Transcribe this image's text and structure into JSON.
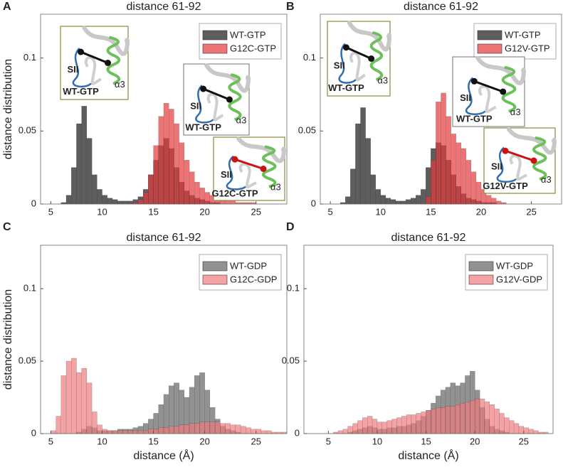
{
  "chart_data": [
    {
      "type": "histogram",
      "panel": "A",
      "title": "distance 61-92",
      "ylabel": "distance distribution",
      "xlim": [
        4,
        28
      ],
      "ylim": [
        0,
        0.13
      ],
      "xticks": [
        5,
        10,
        15,
        20,
        25
      ],
      "yticks": [
        0,
        0.05,
        0.1
      ],
      "legend": "upper right",
      "bins": [
        4.5,
        5,
        5.5,
        6,
        6.5,
        7,
        7.5,
        8,
        8.5,
        9,
        9.5,
        10,
        10.5,
        11,
        11.5,
        12,
        12.5,
        13,
        13.5,
        14,
        14.5,
        15,
        15.5,
        16,
        16.5,
        17,
        17.5,
        18,
        18.5,
        19,
        19.5,
        20,
        20.5,
        21,
        21.5,
        22,
        22.5,
        23,
        23.5,
        24,
        24.5,
        25,
        25.5,
        26,
        26.5,
        27,
        27.5,
        28
      ],
      "series": [
        {
          "name": "WT-GTP",
          "color": "#555555",
          "alpha": 0.95,
          "values": [
            0,
            0,
            0,
            0.001,
            0.006,
            0.025,
            0.055,
            0.067,
            0.045,
            0.02,
            0.01,
            0.006,
            0.004,
            0.003,
            0.002,
            0.002,
            0.002,
            0.003,
            0.005,
            0.01,
            0.02,
            0.03,
            0.04,
            0.045,
            0.038,
            0.025,
            0.015,
            0.009,
            0.006,
            0.004,
            0.003,
            0.002,
            0.001,
            0.001,
            0,
            0,
            0,
            0,
            0,
            0,
            0,
            0,
            0,
            0,
            0,
            0,
            0
          ]
        },
        {
          "name": "G12C-GTP",
          "color": "#e8393c",
          "alpha": 0.7,
          "values": [
            0,
            0,
            0,
            0,
            0,
            0,
            0,
            0,
            0,
            0,
            0,
            0,
            0,
            0,
            0,
            0,
            0,
            0.001,
            0.003,
            0.008,
            0.02,
            0.04,
            0.06,
            0.069,
            0.065,
            0.055,
            0.042,
            0.03,
            0.022,
            0.015,
            0.011,
            0.008,
            0.006,
            0.004,
            0.003,
            0.002,
            0.002,
            0.001,
            0.001,
            0.001,
            0.001,
            0,
            0,
            0,
            0,
            0,
            0
          ]
        }
      ],
      "insets": [
        {
          "sii": "SII",
          "helix": "α3",
          "name": "WT-GTP",
          "color": "#111111"
        },
        {
          "sii": "SII",
          "helix": "α3",
          "name": "WT-GTP",
          "color": "#111111"
        },
        {
          "sii": "SII",
          "helix": "α3",
          "name": "G12C-GTP",
          "color": "#cc1111"
        }
      ]
    },
    {
      "type": "histogram",
      "panel": "B",
      "title": "distance 61-92",
      "xlim": [
        4,
        28
      ],
      "ylim": [
        0,
        0.13
      ],
      "xticks": [
        5,
        10,
        15,
        20,
        25
      ],
      "yticks": [
        0,
        0.05,
        0.1
      ],
      "legend": "upper right",
      "bins": [
        4.5,
        5,
        5.5,
        6,
        6.5,
        7,
        7.5,
        8,
        8.5,
        9,
        9.5,
        10,
        10.5,
        11,
        11.5,
        12,
        12.5,
        13,
        13.5,
        14,
        14.5,
        15,
        15.5,
        16,
        16.5,
        17,
        17.5,
        18,
        18.5,
        19,
        19.5,
        20,
        20.5,
        21,
        21.5,
        22,
        22.5,
        23,
        23.5,
        24,
        24.5,
        25,
        25.5,
        26,
        26.5,
        27,
        27.5,
        28
      ],
      "series": [
        {
          "name": "WT-GTP",
          "color": "#555555",
          "alpha": 0.95,
          "values": [
            0,
            0,
            0,
            0.001,
            0.005,
            0.024,
            0.055,
            0.066,
            0.045,
            0.02,
            0.01,
            0.006,
            0.004,
            0.003,
            0.002,
            0.002,
            0.003,
            0.004,
            0.006,
            0.01,
            0.025,
            0.038,
            0.042,
            0.04,
            0.03,
            0.02,
            0.012,
            0.007,
            0.004,
            0.003,
            0.002,
            0.001,
            0.001,
            0.001,
            0,
            0,
            0,
            0,
            0,
            0,
            0,
            0,
            0,
            0,
            0,
            0,
            0
          ]
        },
        {
          "name": "G12V-GTP",
          "color": "#e8393c",
          "alpha": 0.7,
          "values": [
            0,
            0,
            0,
            0,
            0,
            0,
            0,
            0,
            0,
            0,
            0,
            0,
            0,
            0,
            0,
            0,
            0,
            0,
            0,
            0,
            0.005,
            0.03,
            0.07,
            0.076,
            0.06,
            0.048,
            0.042,
            0.038,
            0.03,
            0.022,
            0.015,
            0.01,
            0.006,
            0.004,
            0.002,
            0.001,
            0,
            0,
            0,
            0,
            0,
            0,
            0,
            0,
            0,
            0,
            0
          ]
        }
      ],
      "insets": [
        {
          "sii": "SII",
          "helix": "α3",
          "name": "WT-GTP",
          "color": "#111111"
        },
        {
          "sii": "SII",
          "helix": "α3",
          "name": "WT-GTP",
          "color": "#111111"
        },
        {
          "sii": "SII",
          "helix": "α3",
          "name": "G12V-GTP",
          "color": "#cc1111"
        }
      ]
    },
    {
      "type": "histogram",
      "panel": "C",
      "title": "distance 61-92",
      "xlabel": "distance (Å)",
      "ylabel": "distance distribution",
      "xlim": [
        4,
        28
      ],
      "ylim": [
        0,
        0.13
      ],
      "xticks": [
        5,
        10,
        15,
        20,
        25
      ],
      "yticks": [
        0,
        0.05,
        0.1
      ],
      "legend": "upper right",
      "bins": [
        4.5,
        5,
        5.5,
        6,
        6.5,
        7,
        7.5,
        8,
        8.5,
        9,
        9.5,
        10,
        10.5,
        11,
        11.5,
        12,
        12.5,
        13,
        13.5,
        14,
        14.5,
        15,
        15.5,
        16,
        16.5,
        17,
        17.5,
        18,
        18.5,
        19,
        19.5,
        20,
        20.5,
        21,
        21.5,
        22,
        22.5,
        23,
        23.5,
        24,
        24.5,
        25,
        25.5,
        26,
        26.5,
        27,
        27.5,
        28
      ],
      "series": [
        {
          "name": "WT-GDP",
          "color": "#777777",
          "alpha": 0.8,
          "values": [
            0,
            0,
            0,
            0,
            0,
            0,
            0.001,
            0.003,
            0.005,
            0.004,
            0.002,
            0.002,
            0.002,
            0.002,
            0.003,
            0.003,
            0.003,
            0.004,
            0.005,
            0.007,
            0.01,
            0.014,
            0.02,
            0.027,
            0.033,
            0.035,
            0.03,
            0.025,
            0.032,
            0.04,
            0.042,
            0.03,
            0.018,
            0.01,
            0.005,
            0.003,
            0.002,
            0.001,
            0,
            0,
            0,
            0,
            0,
            0,
            0,
            0,
            0
          ]
        },
        {
          "name": "G12C-GDP",
          "color": "#f07b7d",
          "alpha": 0.7,
          "values": [
            0,
            0.002,
            0.012,
            0.04,
            0.05,
            0.052,
            0.042,
            0.045,
            0.035,
            0.015,
            0.006,
            0.003,
            0.002,
            0.002,
            0.002,
            0.002,
            0.002,
            0.002,
            0.002,
            0.002,
            0.003,
            0.003,
            0.004,
            0.004,
            0.005,
            0.005,
            0.006,
            0.006,
            0.007,
            0.007,
            0.008,
            0.008,
            0.008,
            0.008,
            0.007,
            0.007,
            0.006,
            0.006,
            0.005,
            0.004,
            0.003,
            0.003,
            0.002,
            0.002,
            0.001,
            0.001,
            0.001
          ]
        }
      ]
    },
    {
      "type": "histogram",
      "panel": "D",
      "title": "distance 61-92",
      "xlabel": "distance (Å)",
      "xlim": [
        2.5,
        28
      ],
      "ylim": [
        0,
        0.13
      ],
      "xticks": [
        5,
        10,
        15,
        20,
        25
      ],
      "yticks": [
        0,
        0.05,
        0.1
      ],
      "legend": "upper right",
      "bins": [
        4.5,
        5,
        5.5,
        6,
        6.5,
        7,
        7.5,
        8,
        8.5,
        9,
        9.5,
        10,
        10.5,
        11,
        11.5,
        12,
        12.5,
        13,
        13.5,
        14,
        14.5,
        15,
        15.5,
        16,
        16.5,
        17,
        17.5,
        18,
        18.5,
        19,
        19.5,
        20,
        20.5,
        21,
        21.5,
        22,
        22.5,
        23,
        23.5,
        24,
        24.5,
        25,
        25.5,
        26,
        26.5,
        27,
        27.5,
        28
      ],
      "series": [
        {
          "name": "WT-GDP",
          "color": "#777777",
          "alpha": 0.8,
          "values": [
            0,
            0,
            0,
            0,
            0,
            0.001,
            0.002,
            0.003,
            0.004,
            0.005,
            0.004,
            0.003,
            0.003,
            0.004,
            0.004,
            0.005,
            0.005,
            0.006,
            0.007,
            0.009,
            0.012,
            0.016,
            0.021,
            0.026,
            0.03,
            0.032,
            0.035,
            0.033,
            0.035,
            0.04,
            0.043,
            0.03,
            0.018,
            0.01,
            0.005,
            0.003,
            0.002,
            0.001,
            0,
            0,
            0,
            0,
            0,
            0,
            0,
            0,
            0
          ]
        },
        {
          "name": "G12V-GDP",
          "color": "#f07b7d",
          "alpha": 0.7,
          "values": [
            0,
            0,
            0.001,
            0.002,
            0.003,
            0.005,
            0.007,
            0.009,
            0.011,
            0.012,
            0.01,
            0.008,
            0.008,
            0.009,
            0.01,
            0.011,
            0.012,
            0.013,
            0.013,
            0.014,
            0.015,
            0.016,
            0.017,
            0.018,
            0.018,
            0.019,
            0.019,
            0.02,
            0.021,
            0.022,
            0.023,
            0.024,
            0.024,
            0.022,
            0.02,
            0.017,
            0.014,
            0.011,
            0.009,
            0.007,
            0.005,
            0.004,
            0.003,
            0.002,
            0.001,
            0.001,
            0
          ]
        }
      ]
    }
  ]
}
